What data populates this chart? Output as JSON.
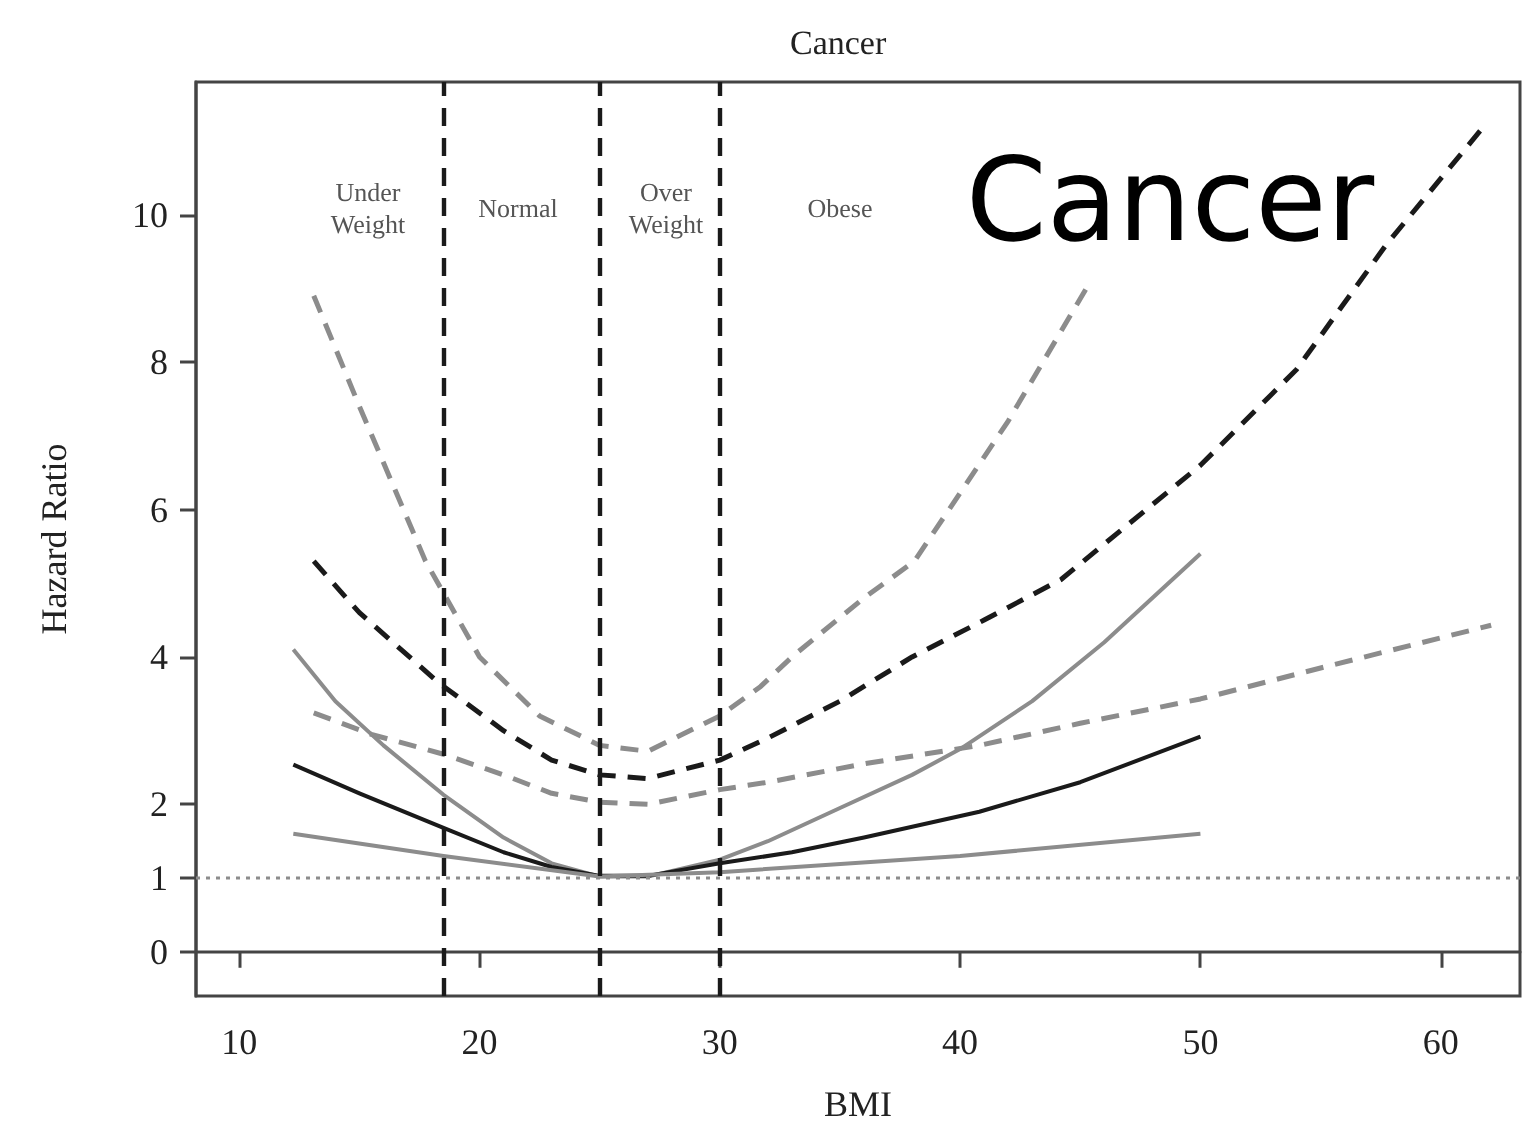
{
  "chart_data": {
    "type": "line",
    "title": "Cancer",
    "xlabel": "BMI",
    "ylabel": "Hazard Ratio",
    "xlim": [
      8.2,
      63.3
    ],
    "xticks": [
      10,
      20,
      30,
      40,
      50,
      60
    ],
    "ylim": [
      -0.6,
      11.8
    ],
    "yticks": [
      0,
      1,
      2,
      4,
      6,
      8,
      10
    ],
    "grid": false,
    "marker": "none",
    "series": [
      {
        "color": "#8c8c8c",
        "line_style": "dashed",
        "x": [
          13.1,
          15,
          17.75,
          20,
          22.5,
          25,
          27,
          30,
          31.7,
          33,
          36,
          38.1,
          42,
          45.25
        ],
        "values": [
          8.9,
          7.4,
          5.3,
          4.0,
          3.2,
          2.8,
          2.72,
          3.2,
          3.6,
          4.0,
          4.8,
          5.3,
          7.2,
          9.0
        ]
      },
      {
        "color": "#1a1a1a",
        "line_style": "dashed",
        "x": [
          13.1,
          15,
          18.3,
          21,
          23,
          25,
          27,
          30,
          32,
          35,
          38,
          41,
          44.2,
          47,
          50,
          54,
          57.75,
          61.8
        ],
        "values": [
          5.3,
          4.6,
          3.65,
          3.0,
          2.6,
          2.4,
          2.35,
          2.6,
          2.9,
          3.4,
          4.0,
          4.5,
          5.05,
          5.8,
          6.6,
          7.9,
          9.6,
          11.2
        ]
      },
      {
        "color": "#8c8c8c",
        "line_style": "dashed",
        "x": [
          13.1,
          15.5,
          18.5,
          21,
          23,
          25,
          27,
          30,
          32,
          36,
          40.8,
          45,
          50,
          55,
          62.1
        ],
        "values": [
          3.24,
          2.95,
          2.68,
          2.4,
          2.15,
          2.03,
          2.0,
          2.2,
          2.3,
          2.55,
          2.8,
          3.1,
          3.43,
          3.85,
          4.43
        ]
      },
      {
        "color": "#8c8c8c",
        "line_style": "solid",
        "x": [
          12.25,
          14,
          16,
          18.5,
          21,
          23,
          25,
          27,
          30,
          32,
          35,
          38,
          40,
          43,
          46,
          50
        ],
        "values": [
          4.1,
          3.4,
          2.8,
          2.13,
          1.55,
          1.2,
          1.02,
          1.02,
          1.25,
          1.5,
          1.95,
          2.4,
          2.75,
          3.4,
          4.2,
          5.4
        ]
      },
      {
        "color": "#1a1a1a",
        "line_style": "solid",
        "x": [
          12.25,
          15,
          18.5,
          21,
          23,
          25,
          27,
          30,
          33,
          36,
          40.8,
          45,
          50
        ],
        "values": [
          2.54,
          2.15,
          1.68,
          1.35,
          1.15,
          1.03,
          1.03,
          1.2,
          1.35,
          1.55,
          1.9,
          2.3,
          2.92
        ]
      },
      {
        "color": "#8c8c8c",
        "line_style": "solid",
        "x": [
          12.25,
          18.5,
          25,
          30,
          40,
          50
        ],
        "values": [
          1.6,
          1.3,
          1.02,
          1.08,
          1.3,
          1.6
        ]
      }
    ],
    "ref_lines": [
      {
        "axis": "x",
        "value": 18.5,
        "color": "#1a1a1a",
        "line_style": "dashed"
      },
      {
        "axis": "x",
        "value": 25,
        "color": "#1a1a1a",
        "line_style": "dashed"
      },
      {
        "axis": "x",
        "value": 30,
        "color": "#1a1a1a",
        "line_style": "dashed"
      },
      {
        "axis": "y",
        "value": 1,
        "color": "#8c8c8c",
        "line_style": "dotted"
      }
    ],
    "annotations": [
      "Under\nWeight",
      "Normal",
      "Over\nWeight",
      "Obese",
      "Cancer"
    ]
  }
}
